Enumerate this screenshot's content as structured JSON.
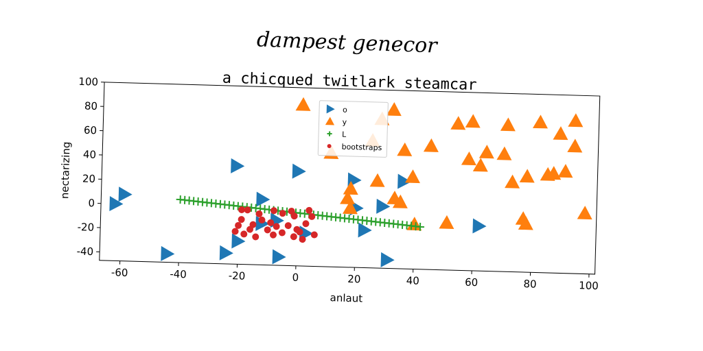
{
  "chart_data": {
    "type": "scatter",
    "suptitle": "dampest genecor",
    "title": "a chicqued twitlark steamcar",
    "xlabel": "anlaut",
    "ylabel": "nectarizing",
    "xlim": [
      -67,
      102
    ],
    "ylim": [
      -47,
      100
    ],
    "xticks": [
      -60,
      -40,
      -20,
      0,
      20,
      40,
      60,
      80,
      100
    ],
    "yticks": [
      -40,
      -20,
      0,
      20,
      40,
      60,
      80,
      100
    ],
    "legend_position": "upper center",
    "grid": false,
    "series": [
      {
        "name": "o",
        "marker": "triangle-right",
        "color": "#1f77b4",
        "points": [
          [
            -62,
            0
          ],
          [
            -59,
            8
          ],
          [
            -44,
            -40
          ],
          [
            -24,
            -38
          ],
          [
            -20,
            -28
          ],
          [
            -21,
            34
          ],
          [
            -12,
            7
          ],
          [
            -12,
            -13
          ],
          [
            -7,
            -10
          ],
          [
            -6,
            -40
          ],
          [
            0,
            31
          ],
          [
            3,
            -20
          ],
          [
            19,
            25
          ],
          [
            20,
            2
          ],
          [
            23,
            -16
          ],
          [
            29,
            4
          ],
          [
            36,
            25
          ],
          [
            31,
            -40
          ],
          [
            62,
            -10
          ]
        ]
      },
      {
        "name": "y",
        "marker": "triangle-up",
        "color": "#ff7f0e",
        "points": [
          [
            1,
            86
          ],
          [
            11,
            47
          ],
          [
            18,
            18
          ],
          [
            17,
            10
          ],
          [
            18,
            2
          ],
          [
            25,
            58
          ],
          [
            27,
            25
          ],
          [
            28,
            76
          ],
          [
            32,
            84
          ],
          [
            33,
            11
          ],
          [
            35,
            8
          ],
          [
            36,
            51
          ],
          [
            39,
            29
          ],
          [
            45,
            55
          ],
          [
            54,
            74
          ],
          [
            59,
            76
          ],
          [
            58,
            45
          ],
          [
            62,
            40
          ],
          [
            64,
            51
          ],
          [
            71,
            74
          ],
          [
            70,
            50
          ],
          [
            73,
            27
          ],
          [
            77,
            -3
          ],
          [
            78,
            -7
          ],
          [
            78,
            32
          ],
          [
            82,
            77
          ],
          [
            85,
            34
          ],
          [
            87,
            35
          ],
          [
            89,
            68
          ],
          [
            91,
            37
          ],
          [
            94,
            79
          ],
          [
            94,
            58
          ],
          [
            98,
            3
          ],
          [
            51,
            -8
          ],
          [
            40,
            -10
          ]
        ]
      },
      {
        "name": "L",
        "marker": "plus",
        "color": "#2ca02c",
        "line": {
          "x_start": -40,
          "x_end": 42,
          "y_start": 5,
          "y_end": -12,
          "count": 55
        }
      },
      {
        "name": "bootstraps",
        "marker": "circle",
        "color": "#d62728",
        "points": [
          [
            -19,
            -2
          ],
          [
            -17,
            -2
          ],
          [
            -13,
            -5
          ],
          [
            -8,
            -2
          ],
          [
            -5,
            -4
          ],
          [
            -2,
            -2
          ],
          [
            -1,
            -6
          ],
          [
            4,
            -1
          ],
          [
            5,
            -6
          ],
          [
            -20,
            -15
          ],
          [
            -18,
            -22
          ],
          [
            -15,
            -14
          ],
          [
            -12,
            -10
          ],
          [
            -10,
            -18
          ],
          [
            -8,
            -22
          ],
          [
            -5,
            -20
          ],
          [
            -3,
            -14
          ],
          [
            -1,
            -23
          ],
          [
            1,
            -19
          ],
          [
            2,
            -25
          ],
          [
            -21,
            -20
          ],
          [
            -16,
            -18
          ],
          [
            -14,
            -24
          ],
          [
            -7,
            -15
          ],
          [
            3,
            -12
          ],
          [
            6,
            -21
          ],
          [
            -9,
            -12
          ],
          [
            0,
            -17
          ],
          [
            -19,
            -10
          ]
        ]
      }
    ]
  }
}
